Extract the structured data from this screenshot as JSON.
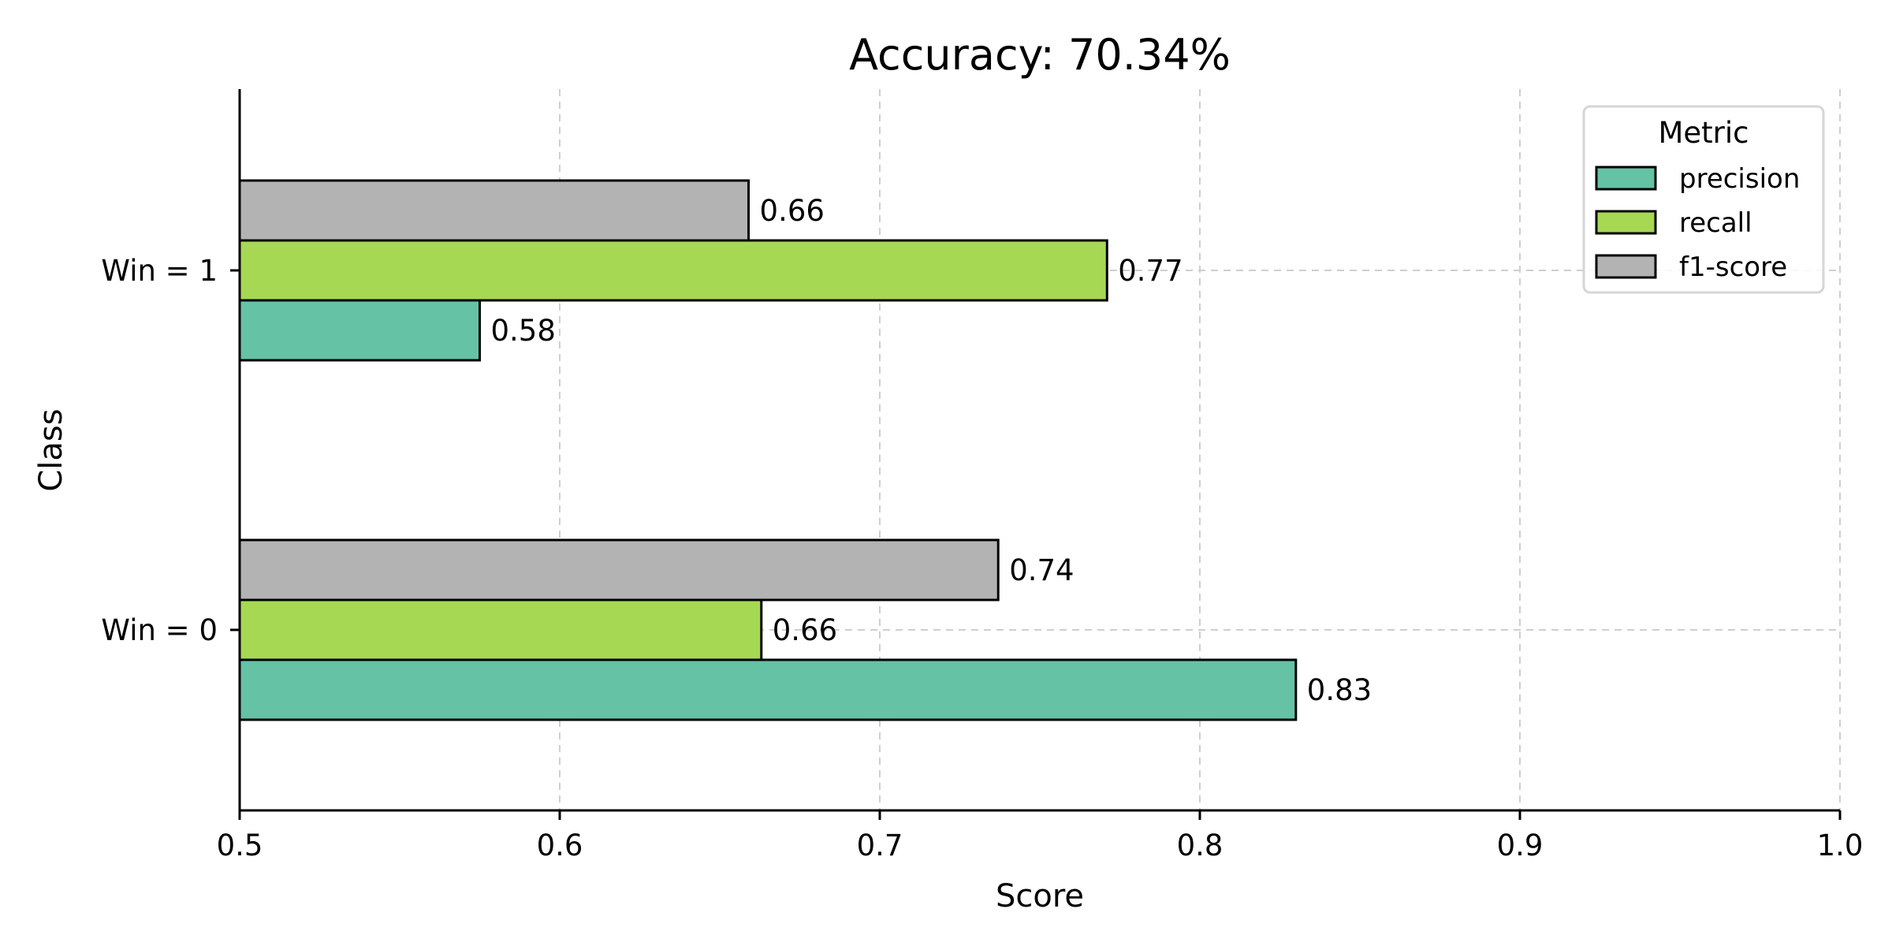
{
  "chart_data": {
    "type": "bar",
    "orientation": "horizontal",
    "title": "Accuracy: 70.34%",
    "xlabel": "Score",
    "ylabel": "Class",
    "xlim": [
      0.5,
      1.0
    ],
    "xticks": [
      "0.5",
      "0.6",
      "0.7",
      "0.8",
      "0.9",
      "1.0"
    ],
    "xtick_values": [
      0.5,
      0.6,
      0.7,
      0.8,
      0.9,
      1.0
    ],
    "categories": [
      "Win = 0",
      "Win = 1"
    ],
    "grid": true,
    "legend": {
      "title": "Metric",
      "position": "top-right"
    },
    "series": [
      {
        "name": "precision",
        "color": "#66c2a5",
        "values": [
          0.83,
          0.575
        ],
        "labels": [
          "0.83",
          "0.58"
        ]
      },
      {
        "name": "recall",
        "color": "#a6d854",
        "values": [
          0.663,
          0.771
        ],
        "labels": [
          "0.66",
          "0.77"
        ]
      },
      {
        "name": "f1-score",
        "color": "#b3b3b3",
        "values": [
          0.737,
          0.659
        ],
        "labels": [
          "0.74",
          "0.66"
        ]
      }
    ]
  }
}
